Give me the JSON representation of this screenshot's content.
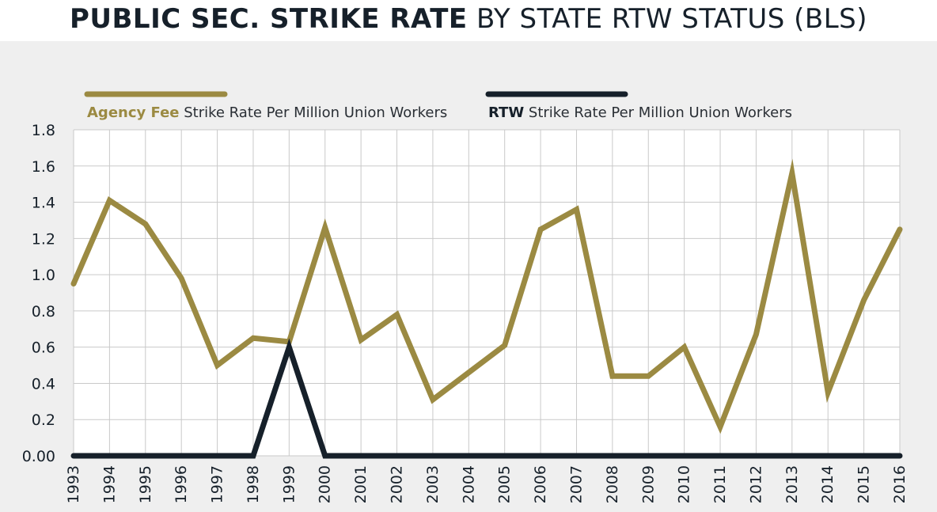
{
  "title": {
    "bold": "PUBLIC SEC. STRIKE RATE",
    "light": " BY STATE RTW STATUS (BLS)"
  },
  "legend": [
    {
      "prefix": "Agency Fee",
      "label": "Strike Rate Per Million Union Workers",
      "color": "#9b8a42"
    },
    {
      "prefix": "RTW",
      "label": "Strike Rate Per Million Union Workers",
      "color": "#16202a"
    }
  ],
  "chart_data": {
    "type": "line",
    "x": [
      "1993",
      "1994",
      "1995",
      "1996",
      "1997",
      "1998",
      "1999",
      "2000",
      "2001",
      "2002",
      "2003",
      "2004",
      "2005",
      "2006",
      "2007",
      "2008",
      "2009",
      "2010",
      "2011",
      "2012",
      "2013",
      "2014",
      "2015",
      "2016"
    ],
    "series": [
      {
        "name": "Agency Fee Strike Rate Per Million Union Workers",
        "color": "#9b8a42",
        "values": [
          0.95,
          1.41,
          1.28,
          0.98,
          0.5,
          0.65,
          0.63,
          1.26,
          0.64,
          0.78,
          0.31,
          0.46,
          0.61,
          1.25,
          1.36,
          0.44,
          0.44,
          0.6,
          0.16,
          0.67,
          1.56,
          0.35,
          0.86,
          1.25
        ]
      },
      {
        "name": "RTW Strike Rate Per Million Union Workers",
        "color": "#16202a",
        "values": [
          0,
          0,
          0,
          0,
          0,
          0,
          0.6,
          0,
          0,
          0,
          0,
          0,
          0,
          0,
          0,
          0,
          0,
          0,
          0,
          0,
          0,
          0,
          0,
          0
        ]
      }
    ],
    "yticks": [
      "0.00",
      "0.2",
      "0.4",
      "0.6",
      "0.8",
      "1.0",
      "1.2",
      "1.4",
      "1.6",
      "1.8"
    ],
    "ylim": [
      0,
      1.8
    ],
    "grid": true,
    "legend_position": "top"
  }
}
